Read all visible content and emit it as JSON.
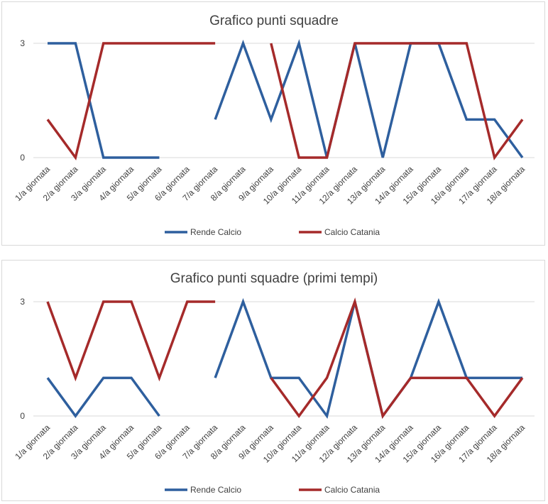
{
  "charts": [
    {
      "id": "chart1",
      "title": "Grafico punti squadre"
    },
    {
      "id": "chart2",
      "title": "Grafico punti squadre (primi tempi)"
    }
  ],
  "colors": {
    "rende": "#2e5f9e",
    "catania": "#a52a2a",
    "grid": "#d9d9d9"
  },
  "chart_data": [
    {
      "type": "line",
      "title": "Grafico punti squadre",
      "categories": [
        "1/a giornata",
        "2/a giornata",
        "3/a giornata",
        "4/a giornata",
        "5/a giornata",
        "6/a giornata",
        "7/a giornata",
        "8/a giornata",
        "9/a giornata",
        "10/a giornata",
        "11/a giornata",
        "12/a giornata",
        "13/a giornata",
        "14/a giornata",
        "15/a giornata",
        "16/a giornata",
        "17/a giornata",
        "18/a giornata"
      ],
      "yticks": [
        0,
        3
      ],
      "ylim": [
        0,
        3
      ],
      "grid": true,
      "legend": "bottom",
      "series": [
        {
          "name": "Rende Calcio",
          "color": "#2e5f9e",
          "values": [
            3,
            3,
            0,
            0,
            0,
            null,
            1,
            3,
            1,
            3,
            0,
            3,
            0,
            3,
            3,
            1,
            1,
            0
          ]
        },
        {
          "name": "Calcio Catania",
          "color": "#a52a2a",
          "values": [
            1,
            0,
            3,
            3,
            3,
            3,
            3,
            null,
            3,
            0,
            0,
            3,
            3,
            3,
            3,
            3,
            0,
            1
          ]
        }
      ]
    },
    {
      "type": "line",
      "title": "Grafico punti squadre (primi tempi)",
      "categories": [
        "1/a giornata",
        "2/a giornata",
        "3/a giornata",
        "4/a giornata",
        "5/a giornata",
        "6/a giornata",
        "7/a giornata",
        "8/a giornata",
        "9/a giornata",
        "10/a giornata",
        "11/a giornata",
        "12/a giornata",
        "13/a giornata",
        "14/a giornata",
        "15/a giornata",
        "16/a giornata",
        "17/a giornata",
        "18/a giornata"
      ],
      "yticks": [
        0,
        3
      ],
      "ylim": [
        0,
        3
      ],
      "grid": true,
      "legend": "bottom",
      "series": [
        {
          "name": "Rende Calcio",
          "color": "#2e5f9e",
          "values": [
            1,
            0,
            1,
            1,
            0,
            null,
            1,
            3,
            1,
            1,
            0,
            3,
            0,
            1,
            3,
            1,
            1,
            1
          ]
        },
        {
          "name": "Calcio Catania",
          "color": "#a52a2a",
          "values": [
            3,
            1,
            3,
            3,
            1,
            3,
            3,
            null,
            1,
            0,
            1,
            3,
            0,
            1,
            1,
            1,
            0,
            1
          ]
        }
      ]
    }
  ]
}
